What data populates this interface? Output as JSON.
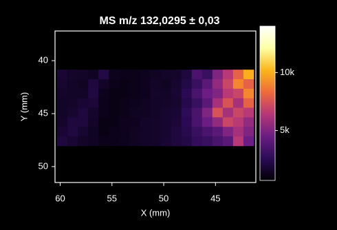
{
  "chart_data": {
    "type": "heatmap",
    "title": "MS m/z 132,0295 ± 0,03",
    "x_label": "X (mm)",
    "y_label": "Y (mm)",
    "x": [
      59.8,
      58.8,
      57.8,
      56.8,
      55.8,
      54.8,
      53.8,
      52.8,
      51.8,
      50.8,
      49.8,
      48.8,
      47.8,
      46.8,
      45.8,
      44.8,
      43.8,
      42.8,
      41.8
    ],
    "y": [
      41.3,
      42.2,
      43.1,
      44.0,
      44.9,
      45.8,
      46.7,
      47.6
    ],
    "z": [
      [
        1800,
        1600,
        1500,
        1400,
        2200,
        1300,
        1200,
        1200,
        1300,
        1400,
        1500,
        1600,
        2000,
        3500,
        3000,
        5000,
        6500,
        8000,
        10000
      ],
      [
        1700,
        1500,
        1400,
        2000,
        1500,
        1200,
        1100,
        1200,
        1300,
        1500,
        1400,
        1700,
        2200,
        3000,
        4000,
        5500,
        7000,
        9000,
        8000
      ],
      [
        1600,
        1500,
        1500,
        2100,
        1300,
        1100,
        1100,
        1200,
        1300,
        1600,
        1500,
        1800,
        2500,
        3500,
        4500,
        5000,
        6500,
        7000,
        9000
      ],
      [
        1500,
        1600,
        1800,
        1900,
        1200,
        1100,
        1200,
        1300,
        1400,
        1500,
        1600,
        1700,
        2300,
        3000,
        4000,
        6000,
        7500,
        6000,
        8000
      ],
      [
        1500,
        1700,
        2000,
        1600,
        1200,
        1100,
        1200,
        1400,
        1400,
        1500,
        1700,
        1800,
        2600,
        3500,
        5000,
        7500,
        6000,
        7000,
        6500
      ],
      [
        1600,
        2000,
        2000,
        1500,
        1100,
        1100,
        1300,
        1300,
        1500,
        1600,
        1700,
        1900,
        2500,
        3500,
        4500,
        5500,
        7000,
        6500,
        5500
      ],
      [
        1800,
        2100,
        1700,
        1400,
        1100,
        1200,
        1300,
        1400,
        1500,
        1600,
        1700,
        2000,
        2400,
        3000,
        3500,
        4000,
        5000,
        6000,
        5000
      ],
      [
        2000,
        1800,
        1500,
        1400,
        1200,
        1200,
        1300,
        1400,
        1500,
        1600,
        1800,
        2000,
        2200,
        2800,
        3000,
        3500,
        4000,
        6500,
        4500
      ]
    ],
    "xlim": [
      60.5,
      41.1
    ],
    "ylim": [
      37.2,
      51.5
    ],
    "xticks": [
      60,
      55,
      50,
      45
    ],
    "yticks": [
      40,
      45,
      50
    ],
    "clim": [
      700,
      14000
    ],
    "cticks": [
      {
        "value": 5000,
        "label": "5k"
      },
      {
        "value": 10000,
        "label": "10k"
      }
    ],
    "colormap": [
      "#000004",
      "#2c0b57",
      "#6b1d83",
      "#b63679",
      "#ee6a3c",
      "#fbb61a",
      "#fcffa4",
      "#ffffff"
    ]
  }
}
